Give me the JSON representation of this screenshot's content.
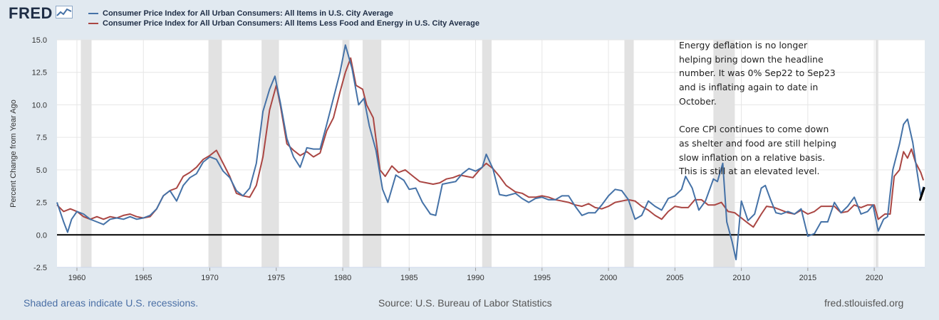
{
  "brand": {
    "name": "FRED"
  },
  "legend": [
    {
      "label": "Consumer Price Index for All Urban Consumers: All Items in U.S. City Average",
      "color": "#4572a7"
    },
    {
      "label": "Consumer Price Index for All Urban Consumers: All Items Less Food and Energy in U.S. City Average",
      "color": "#aa4643"
    }
  ],
  "annotation": {
    "paragraph1": "Energy deflation is no longer helping bring down the headline number. It was 0% Sep22 to Sep23 and is inflating again to date in October.",
    "paragraph2": "Core CPI continues to come down as shelter and food are still helping slow inflation on a relative basis. This is still at an elevated level."
  },
  "footer": {
    "recession_note": "Shaded areas indicate U.S. recessions.",
    "source": "Source: U.S. Bureau of Labor Statistics",
    "site": "fred.stlouisfed.org"
  },
  "chart_data": {
    "type": "line",
    "ylabel": "Percent Change from Year Ago",
    "xlabel": "",
    "xlim": [
      1958.5,
      2023.8
    ],
    "ylim": [
      -2.5,
      15.0
    ],
    "yticks": [
      "15.0",
      "12.5",
      "10.0",
      "7.5",
      "5.0",
      "2.5",
      "0.0",
      "-2.5"
    ],
    "ytick_values": [
      15,
      12.5,
      10,
      7.5,
      5,
      2.5,
      0,
      -2.5
    ],
    "xticks": [
      "1960",
      "1965",
      "1970",
      "1975",
      "1980",
      "1985",
      "1990",
      "1995",
      "2000",
      "2005",
      "2010",
      "2015",
      "2020"
    ],
    "xtick_values": [
      1960,
      1965,
      1970,
      1975,
      1980,
      1985,
      1990,
      1995,
      2000,
      2005,
      2010,
      2015,
      2020
    ],
    "recessions": [
      [
        1960.3,
        1961.1
      ],
      [
        1969.9,
        1970.9
      ],
      [
        1973.9,
        1975.2
      ],
      [
        1980.0,
        1980.5
      ],
      [
        1981.5,
        1982.9
      ],
      [
        1990.5,
        1991.2
      ],
      [
        2001.2,
        2001.9
      ],
      [
        2007.9,
        2009.5
      ],
      [
        2020.1,
        2020.3
      ]
    ],
    "zero_line": 0,
    "series": [
      {
        "name": "Consumer Price Index for All Urban Consumers: All Items in U.S. City Average",
        "color": "#4572a7",
        "points": [
          [
            1958.5,
            2.5
          ],
          [
            1959.0,
            1.0
          ],
          [
            1959.3,
            0.2
          ],
          [
            1959.6,
            1.2
          ],
          [
            1960.0,
            1.8
          ],
          [
            1960.5,
            1.6
          ],
          [
            1961.0,
            1.2
          ],
          [
            1961.5,
            1.0
          ],
          [
            1962.0,
            0.8
          ],
          [
            1962.5,
            1.2
          ],
          [
            1963.0,
            1.3
          ],
          [
            1963.5,
            1.2
          ],
          [
            1964.0,
            1.4
          ],
          [
            1964.5,
            1.2
          ],
          [
            1965.0,
            1.3
          ],
          [
            1965.5,
            1.5
          ],
          [
            1966.0,
            2.0
          ],
          [
            1966.5,
            3.0
          ],
          [
            1967.0,
            3.4
          ],
          [
            1967.5,
            2.6
          ],
          [
            1968.0,
            3.8
          ],
          [
            1968.5,
            4.4
          ],
          [
            1969.0,
            4.7
          ],
          [
            1969.5,
            5.6
          ],
          [
            1970.0,
            6.0
          ],
          [
            1970.5,
            5.8
          ],
          [
            1971.0,
            4.9
          ],
          [
            1971.5,
            4.4
          ],
          [
            1972.0,
            3.4
          ],
          [
            1972.5,
            3.0
          ],
          [
            1973.0,
            3.6
          ],
          [
            1973.5,
            5.5
          ],
          [
            1974.0,
            9.5
          ],
          [
            1974.5,
            11.2
          ],
          [
            1974.9,
            12.2
          ],
          [
            1975.3,
            10.2
          ],
          [
            1975.8,
            7.4
          ],
          [
            1976.3,
            6.0
          ],
          [
            1976.8,
            5.2
          ],
          [
            1977.3,
            6.7
          ],
          [
            1977.8,
            6.6
          ],
          [
            1978.3,
            6.6
          ],
          [
            1978.8,
            8.5
          ],
          [
            1979.3,
            10.5
          ],
          [
            1979.8,
            12.5
          ],
          [
            1980.2,
            14.6
          ],
          [
            1980.7,
            12.8
          ],
          [
            1981.2,
            10.0
          ],
          [
            1981.6,
            10.5
          ],
          [
            1982.0,
            8.4
          ],
          [
            1982.5,
            6.5
          ],
          [
            1983.0,
            3.5
          ],
          [
            1983.4,
            2.5
          ],
          [
            1984.0,
            4.6
          ],
          [
            1984.6,
            4.2
          ],
          [
            1985.0,
            3.5
          ],
          [
            1985.5,
            3.6
          ],
          [
            1986.0,
            2.5
          ],
          [
            1986.6,
            1.6
          ],
          [
            1987.0,
            1.5
          ],
          [
            1987.5,
            3.9
          ],
          [
            1988.0,
            4.0
          ],
          [
            1988.5,
            4.1
          ],
          [
            1989.0,
            4.7
          ],
          [
            1989.5,
            5.1
          ],
          [
            1990.0,
            4.9
          ],
          [
            1990.5,
            5.2
          ],
          [
            1990.8,
            6.2
          ],
          [
            1991.3,
            5.1
          ],
          [
            1991.8,
            3.1
          ],
          [
            1992.3,
            3.0
          ],
          [
            1993.0,
            3.2
          ],
          [
            1993.5,
            2.8
          ],
          [
            1994.0,
            2.5
          ],
          [
            1994.5,
            2.8
          ],
          [
            1995.0,
            2.9
          ],
          [
            1995.5,
            2.7
          ],
          [
            1996.0,
            2.7
          ],
          [
            1996.5,
            3.0
          ],
          [
            1997.0,
            3.0
          ],
          [
            1997.5,
            2.2
          ],
          [
            1998.0,
            1.5
          ],
          [
            1998.5,
            1.7
          ],
          [
            1999.0,
            1.7
          ],
          [
            1999.5,
            2.3
          ],
          [
            2000.0,
            3.0
          ],
          [
            2000.5,
            3.5
          ],
          [
            2001.0,
            3.4
          ],
          [
            2001.5,
            2.7
          ],
          [
            2002.0,
            1.2
          ],
          [
            2002.5,
            1.5
          ],
          [
            2003.0,
            2.6
          ],
          [
            2003.5,
            2.2
          ],
          [
            2004.0,
            1.9
          ],
          [
            2004.5,
            2.8
          ],
          [
            2005.0,
            3.0
          ],
          [
            2005.5,
            3.5
          ],
          [
            2005.8,
            4.5
          ],
          [
            2006.3,
            3.6
          ],
          [
            2006.8,
            1.9
          ],
          [
            2007.3,
            2.6
          ],
          [
            2007.9,
            4.3
          ],
          [
            2008.2,
            4.1
          ],
          [
            2008.6,
            5.5
          ],
          [
            2008.9,
            1.0
          ],
          [
            2009.3,
            -0.5
          ],
          [
            2009.6,
            -1.9
          ],
          [
            2010.0,
            2.6
          ],
          [
            2010.5,
            1.1
          ],
          [
            2011.0,
            1.6
          ],
          [
            2011.5,
            3.6
          ],
          [
            2011.8,
            3.8
          ],
          [
            2012.2,
            2.7
          ],
          [
            2012.6,
            1.7
          ],
          [
            2013.0,
            1.6
          ],
          [
            2013.5,
            1.8
          ],
          [
            2014.0,
            1.6
          ],
          [
            2014.5,
            2.0
          ],
          [
            2015.0,
            -0.1
          ],
          [
            2015.5,
            0.1
          ],
          [
            2016.0,
            1.0
          ],
          [
            2016.5,
            1.0
          ],
          [
            2017.0,
            2.5
          ],
          [
            2017.5,
            1.7
          ],
          [
            2018.0,
            2.2
          ],
          [
            2018.5,
            2.9
          ],
          [
            2019.0,
            1.6
          ],
          [
            2019.5,
            1.8
          ],
          [
            2019.9,
            2.3
          ],
          [
            2020.3,
            0.3
          ],
          [
            2020.7,
            1.2
          ],
          [
            2021.0,
            1.4
          ],
          [
            2021.4,
            5.0
          ],
          [
            2021.9,
            7.0
          ],
          [
            2022.2,
            8.5
          ],
          [
            2022.5,
            8.9
          ],
          [
            2022.9,
            7.1
          ],
          [
            2023.2,
            5.0
          ],
          [
            2023.5,
            3.0
          ],
          [
            2023.7,
            3.7
          ]
        ]
      },
      {
        "name": "Consumer Price Index for All Urban Consumers: All Items Less Food and Energy in U.S. City Average",
        "color": "#aa4643",
        "points": [
          [
            1958.5,
            2.3
          ],
          [
            1959.0,
            1.8
          ],
          [
            1959.5,
            2.0
          ],
          [
            1960.0,
            1.8
          ],
          [
            1960.5,
            1.4
          ],
          [
            1961.0,
            1.2
          ],
          [
            1961.5,
            1.4
          ],
          [
            1962.0,
            1.2
          ],
          [
            1962.5,
            1.4
          ],
          [
            1963.0,
            1.3
          ],
          [
            1963.5,
            1.5
          ],
          [
            1964.0,
            1.6
          ],
          [
            1964.5,
            1.4
          ],
          [
            1965.0,
            1.3
          ],
          [
            1965.5,
            1.4
          ],
          [
            1966.0,
            2.0
          ],
          [
            1966.5,
            3.0
          ],
          [
            1967.0,
            3.4
          ],
          [
            1967.5,
            3.6
          ],
          [
            1968.0,
            4.5
          ],
          [
            1968.5,
            4.8
          ],
          [
            1969.0,
            5.2
          ],
          [
            1969.5,
            5.8
          ],
          [
            1970.0,
            6.1
          ],
          [
            1970.5,
            6.5
          ],
          [
            1971.0,
            5.5
          ],
          [
            1971.5,
            4.5
          ],
          [
            1972.0,
            3.2
          ],
          [
            1972.5,
            3.0
          ],
          [
            1973.0,
            2.9
          ],
          [
            1973.5,
            3.8
          ],
          [
            1974.0,
            6.0
          ],
          [
            1974.5,
            9.6
          ],
          [
            1975.0,
            11.5
          ],
          [
            1975.3,
            10.0
          ],
          [
            1975.8,
            7.0
          ],
          [
            1976.3,
            6.5
          ],
          [
            1976.8,
            6.1
          ],
          [
            1977.3,
            6.4
          ],
          [
            1977.8,
            6.0
          ],
          [
            1978.3,
            6.3
          ],
          [
            1978.8,
            8.0
          ],
          [
            1979.3,
            9.0
          ],
          [
            1979.8,
            11.0
          ],
          [
            1980.2,
            12.5
          ],
          [
            1980.6,
            13.6
          ],
          [
            1981.0,
            11.5
          ],
          [
            1981.5,
            11.2
          ],
          [
            1981.8,
            10.0
          ],
          [
            1982.3,
            9.0
          ],
          [
            1982.8,
            5.0
          ],
          [
            1983.2,
            4.5
          ],
          [
            1983.7,
            5.3
          ],
          [
            1984.2,
            4.8
          ],
          [
            1984.7,
            5.0
          ],
          [
            1985.3,
            4.5
          ],
          [
            1985.8,
            4.1
          ],
          [
            1986.3,
            4.0
          ],
          [
            1986.8,
            3.9
          ],
          [
            1987.3,
            4.0
          ],
          [
            1987.8,
            4.3
          ],
          [
            1988.3,
            4.4
          ],
          [
            1988.8,
            4.6
          ],
          [
            1989.3,
            4.5
          ],
          [
            1989.8,
            4.4
          ],
          [
            1990.3,
            5.0
          ],
          [
            1990.8,
            5.5
          ],
          [
            1991.3,
            5.1
          ],
          [
            1991.8,
            4.5
          ],
          [
            1992.3,
            3.8
          ],
          [
            1993.0,
            3.3
          ],
          [
            1993.5,
            3.2
          ],
          [
            1994.0,
            2.9
          ],
          [
            1994.5,
            2.9
          ],
          [
            1995.0,
            3.0
          ],
          [
            1995.5,
            2.9
          ],
          [
            1996.0,
            2.7
          ],
          [
            1996.5,
            2.6
          ],
          [
            1997.0,
            2.5
          ],
          [
            1997.5,
            2.3
          ],
          [
            1998.0,
            2.2
          ],
          [
            1998.5,
            2.4
          ],
          [
            1999.0,
            2.1
          ],
          [
            1999.5,
            2.0
          ],
          [
            2000.0,
            2.2
          ],
          [
            2000.5,
            2.5
          ],
          [
            2001.0,
            2.6
          ],
          [
            2001.5,
            2.7
          ],
          [
            2002.0,
            2.6
          ],
          [
            2002.5,
            2.2
          ],
          [
            2003.0,
            1.9
          ],
          [
            2003.5,
            1.5
          ],
          [
            2004.0,
            1.2
          ],
          [
            2004.5,
            1.8
          ],
          [
            2005.0,
            2.2
          ],
          [
            2005.5,
            2.1
          ],
          [
            2006.0,
            2.1
          ],
          [
            2006.5,
            2.7
          ],
          [
            2007.0,
            2.7
          ],
          [
            2007.5,
            2.3
          ],
          [
            2008.0,
            2.3
          ],
          [
            2008.5,
            2.5
          ],
          [
            2009.0,
            1.8
          ],
          [
            2009.5,
            1.7
          ],
          [
            2010.0,
            1.3
          ],
          [
            2010.5,
            0.9
          ],
          [
            2010.9,
            0.6
          ],
          [
            2011.5,
            1.6
          ],
          [
            2011.9,
            2.2
          ],
          [
            2012.5,
            2.1
          ],
          [
            2013.0,
            1.9
          ],
          [
            2013.5,
            1.7
          ],
          [
            2014.0,
            1.6
          ],
          [
            2014.5,
            1.9
          ],
          [
            2015.0,
            1.6
          ],
          [
            2015.5,
            1.8
          ],
          [
            2016.0,
            2.2
          ],
          [
            2016.5,
            2.2
          ],
          [
            2017.0,
            2.2
          ],
          [
            2017.5,
            1.7
          ],
          [
            2018.0,
            1.8
          ],
          [
            2018.5,
            2.3
          ],
          [
            2019.0,
            2.1
          ],
          [
            2019.5,
            2.3
          ],
          [
            2020.0,
            2.3
          ],
          [
            2020.3,
            1.2
          ],
          [
            2020.8,
            1.6
          ],
          [
            2021.2,
            1.6
          ],
          [
            2021.5,
            4.5
          ],
          [
            2021.9,
            5.0
          ],
          [
            2022.2,
            6.4
          ],
          [
            2022.5,
            5.9
          ],
          [
            2022.8,
            6.6
          ],
          [
            2023.1,
            5.6
          ],
          [
            2023.5,
            4.8
          ],
          [
            2023.7,
            4.2
          ]
        ]
      }
    ],
    "marker": {
      "name": "hand-drawn-mark",
      "points": [
        [
          2023.45,
          2.7
        ],
        [
          2023.75,
          3.6
        ]
      ]
    }
  }
}
